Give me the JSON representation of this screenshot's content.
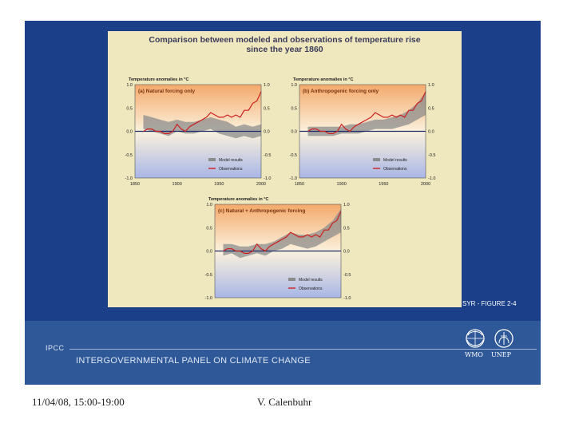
{
  "figure": {
    "title_line1": "Comparison between modeled and observations of temperature rise",
    "title_line2": "since the year 1860",
    "id_label": "SYR - FIGURE 2-4"
  },
  "colors": {
    "slide_bg": "#1b3f88",
    "band_bg": "#2f5899",
    "figure_bg": "#efe8bf",
    "warm": "#f4a96b",
    "cool": "#a9b7e6",
    "observations": "#cc1f1f",
    "model": "#8c8c8c",
    "zero_line": "#1a2a6b"
  },
  "chart_data": [
    {
      "type": "line",
      "panel_label": "(a) Natural forcing only",
      "ylabel": "Temperature anomalies in °C",
      "x_ticks": [
        "1850",
        "1900",
        "1950",
        "2000"
      ],
      "y_ticks": [
        "1.0",
        "0.5",
        "0.0",
        "-0.5",
        "-1.0"
      ],
      "right_y_ticks": [
        "1.0",
        "0.5",
        "0.0",
        "-0.5",
        "-1.0"
      ],
      "xlim": [
        1850,
        2000
      ],
      "ylim": [
        -1.0,
        1.0
      ],
      "legend": {
        "model": "Model results",
        "observations": "Observations"
      },
      "series": [
        {
          "name": "Model results",
          "x": [
            1860,
            1870,
            1880,
            1890,
            1900,
            1910,
            1920,
            1930,
            1940,
            1950,
            1960,
            1970,
            1980,
            1990,
            2000
          ],
          "low": [
            0.05,
            0.0,
            -0.05,
            -0.1,
            0.0,
            -0.05,
            -0.05,
            0.0,
            0.05,
            -0.05,
            -0.1,
            -0.15,
            -0.1,
            -0.15,
            -0.1
          ],
          "high": [
            0.35,
            0.3,
            0.25,
            0.2,
            0.25,
            0.2,
            0.2,
            0.25,
            0.3,
            0.25,
            0.2,
            0.1,
            0.15,
            0.1,
            0.15
          ]
        },
        {
          "name": "Observations",
          "x": [
            1860,
            1865,
            1870,
            1875,
            1880,
            1885,
            1890,
            1895,
            1900,
            1905,
            1910,
            1915,
            1920,
            1925,
            1930,
            1935,
            1940,
            1945,
            1950,
            1955,
            1960,
            1965,
            1970,
            1975,
            1980,
            1985,
            1990,
            1995,
            2000
          ],
          "y": [
            0.0,
            0.05,
            0.05,
            0.0,
            0.0,
            -0.05,
            -0.05,
            0.0,
            0.15,
            0.05,
            0.0,
            0.1,
            0.15,
            0.2,
            0.25,
            0.3,
            0.4,
            0.35,
            0.3,
            0.3,
            0.35,
            0.3,
            0.35,
            0.3,
            0.45,
            0.45,
            0.6,
            0.65,
            0.85
          ]
        }
      ]
    },
    {
      "type": "line",
      "panel_label": "(b) Anthropogenic forcing only",
      "ylabel": "Temperature anomalies in °C",
      "x_ticks": [
        "1850",
        "1900",
        "1950",
        "2000"
      ],
      "y_ticks": [
        "1.0",
        "0.5",
        "0.0",
        "-0.5",
        "-1.0"
      ],
      "right_y_ticks": [
        "1.0",
        "0.5",
        "0.0",
        "-0.5",
        "-1.0"
      ],
      "xlim": [
        1850,
        2000
      ],
      "ylim": [
        -1.0,
        1.0
      ],
      "legend": {
        "model": "Model results",
        "observations": "Observations"
      },
      "series": [
        {
          "name": "Model results",
          "x": [
            1860,
            1870,
            1880,
            1890,
            1900,
            1910,
            1920,
            1930,
            1940,
            1950,
            1960,
            1970,
            1980,
            1990,
            2000
          ],
          "low": [
            -0.1,
            -0.1,
            -0.1,
            -0.1,
            -0.05,
            -0.05,
            -0.05,
            0.0,
            0.05,
            0.05,
            0.05,
            0.1,
            0.15,
            0.25,
            0.35
          ],
          "high": [
            0.1,
            0.1,
            0.1,
            0.1,
            0.1,
            0.15,
            0.15,
            0.2,
            0.25,
            0.25,
            0.3,
            0.35,
            0.45,
            0.6,
            0.85
          ]
        },
        {
          "name": "Observations",
          "x": [
            1860,
            1865,
            1870,
            1875,
            1880,
            1885,
            1890,
            1895,
            1900,
            1905,
            1910,
            1915,
            1920,
            1925,
            1930,
            1935,
            1940,
            1945,
            1950,
            1955,
            1960,
            1965,
            1970,
            1975,
            1980,
            1985,
            1990,
            1995,
            2000
          ],
          "y": [
            0.0,
            0.05,
            0.05,
            0.0,
            0.0,
            -0.05,
            -0.05,
            0.0,
            0.15,
            0.05,
            0.0,
            0.1,
            0.15,
            0.2,
            0.25,
            0.3,
            0.4,
            0.35,
            0.3,
            0.3,
            0.35,
            0.3,
            0.35,
            0.3,
            0.45,
            0.45,
            0.6,
            0.65,
            0.85
          ]
        }
      ]
    },
    {
      "type": "line",
      "panel_label": "(c) Natural + Anthropogenic forcing",
      "ylabel": "Temperature anomalies in °C",
      "x_ticks": [],
      "y_ticks": [
        "1.0",
        "0.5",
        "0.0",
        "-0.5",
        "-1.0"
      ],
      "right_y_ticks": [
        "1.0",
        "0.5",
        "0.0",
        "-0.5",
        "-1.0"
      ],
      "xlim": [
        1850,
        2000
      ],
      "ylim": [
        -1.0,
        1.0
      ],
      "legend": {
        "model": "Model results",
        "observations": "Observations"
      },
      "series": [
        {
          "name": "Model results",
          "x": [
            1860,
            1870,
            1880,
            1890,
            1900,
            1910,
            1920,
            1930,
            1940,
            1950,
            1960,
            1970,
            1980,
            1990,
            2000
          ],
          "low": [
            -0.1,
            -0.05,
            -0.15,
            -0.1,
            -0.05,
            -0.1,
            0.0,
            0.05,
            0.15,
            0.1,
            0.05,
            0.1,
            0.2,
            0.3,
            0.4
          ],
          "high": [
            0.15,
            0.15,
            0.1,
            0.1,
            0.15,
            0.15,
            0.2,
            0.3,
            0.4,
            0.35,
            0.35,
            0.4,
            0.5,
            0.65,
            0.9
          ]
        },
        {
          "name": "Observations",
          "x": [
            1860,
            1865,
            1870,
            1875,
            1880,
            1885,
            1890,
            1895,
            1900,
            1905,
            1910,
            1915,
            1920,
            1925,
            1930,
            1935,
            1940,
            1945,
            1950,
            1955,
            1960,
            1965,
            1970,
            1975,
            1980,
            1985,
            1990,
            1995,
            2000
          ],
          "y": [
            0.0,
            0.05,
            0.05,
            0.0,
            0.0,
            -0.05,
            -0.05,
            0.0,
            0.15,
            0.05,
            0.0,
            0.1,
            0.15,
            0.2,
            0.25,
            0.3,
            0.4,
            0.35,
            0.3,
            0.3,
            0.35,
            0.3,
            0.35,
            0.3,
            0.45,
            0.45,
            0.6,
            0.65,
            0.85
          ]
        }
      ]
    }
  ],
  "band": {
    "ipcc": "IPCC",
    "org_name": "INTERGOVERNMENTAL PANEL ON CLIMATE CHANGE",
    "wmo": "WMO",
    "unep": "UNEP",
    "wmo_icon": "wmo-emblem-icon",
    "unep_icon": "unep-emblem-icon"
  },
  "footer": {
    "date": "11/04/08, 15:00-19:00",
    "author": "V. Calenbuhr"
  }
}
